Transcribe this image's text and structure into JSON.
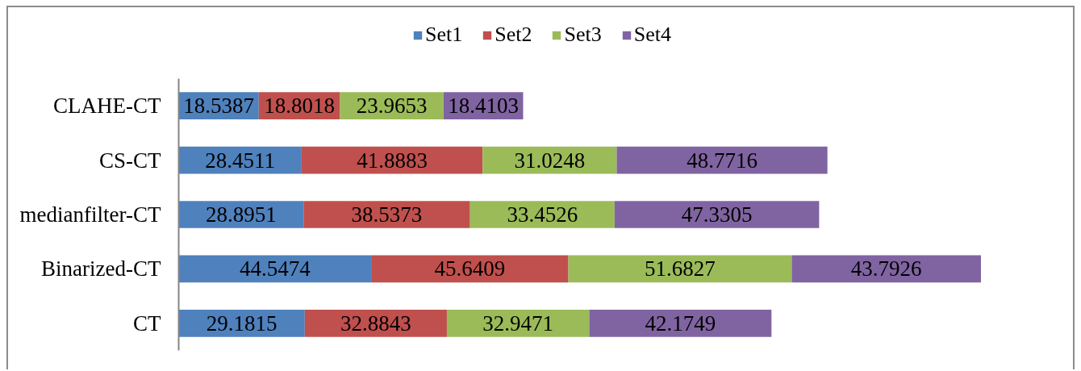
{
  "chart_data": {
    "type": "bar",
    "orientation": "horizontal",
    "stacked": true,
    "data_labels": true,
    "legend": "top",
    "tick_labels": "y",
    "categories": [
      "CLAHE-CT",
      "CS-CT",
      "medianfilter-CT",
      "Binarized-CT",
      "CT"
    ],
    "series": [
      {
        "name": "Set1",
        "color": "#4f81bd",
        "values": [
          18.5387,
          28.4511,
          28.8951,
          44.5474,
          29.1815
        ]
      },
      {
        "name": "Set2",
        "color": "#c0504d",
        "values": [
          18.8018,
          41.8883,
          38.5373,
          45.6409,
          32.8843
        ]
      },
      {
        "name": "Set3",
        "color": "#9bbb59",
        "values": [
          23.9653,
          31.0248,
          33.4526,
          51.6827,
          32.9471
        ]
      },
      {
        "name": "Set4",
        "color": "#8064a2",
        "values": [
          18.4103,
          48.7716,
          47.3305,
          43.7926,
          42.1749
        ]
      }
    ]
  }
}
